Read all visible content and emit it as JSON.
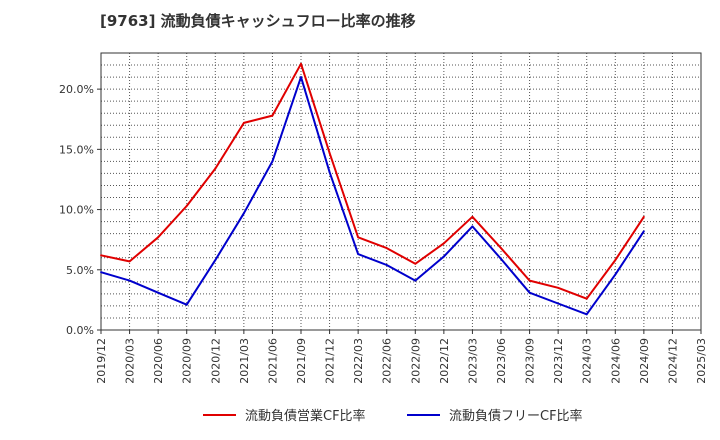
{
  "chart_data": {
    "type": "line",
    "title": "[9763]  流動負債キャッシュフロー比率の推移",
    "xlabel": "",
    "ylabel": "",
    "categories": [
      "2019/12",
      "2020/03",
      "2020/06",
      "2020/09",
      "2020/12",
      "2021/03",
      "2021/06",
      "2021/09",
      "2021/12",
      "2022/03",
      "2022/06",
      "2022/09",
      "2022/12",
      "2023/03",
      "2023/06",
      "2023/09",
      "2023/12",
      "2024/03",
      "2024/06",
      "2024/09",
      "2024/12",
      "2025/03"
    ],
    "ylim": [
      0,
      23
    ],
    "yticks": [
      0,
      5,
      10,
      15,
      20
    ],
    "ytick_labels": [
      "0.0%",
      "5.0%",
      "10.0%",
      "15.0%",
      "20.0%"
    ],
    "grid": true,
    "legend_position": "bottom",
    "series": [
      {
        "name": "流動負債営業CF比率",
        "color": "#e00000",
        "values": [
          6.2,
          5.7,
          7.7,
          10.3,
          13.4,
          17.2,
          17.8,
          22.1,
          14.7,
          7.7,
          6.8,
          5.5,
          7.2,
          9.4,
          6.8,
          4.1,
          3.5,
          2.6,
          5.8,
          9.4,
          null,
          null
        ]
      },
      {
        "name": "流動負債フリーCF比率",
        "color": "#0000cc",
        "values": [
          4.8,
          4.1,
          3.1,
          2.1,
          5.8,
          9.7,
          14.0,
          21.0,
          13.1,
          6.3,
          5.4,
          4.1,
          6.1,
          8.6,
          5.9,
          3.1,
          2.2,
          1.3,
          4.6,
          8.2,
          null,
          null
        ]
      }
    ]
  },
  "colors": {
    "grid": "#555555",
    "axis": "#333333",
    "background": "#ffffff"
  }
}
